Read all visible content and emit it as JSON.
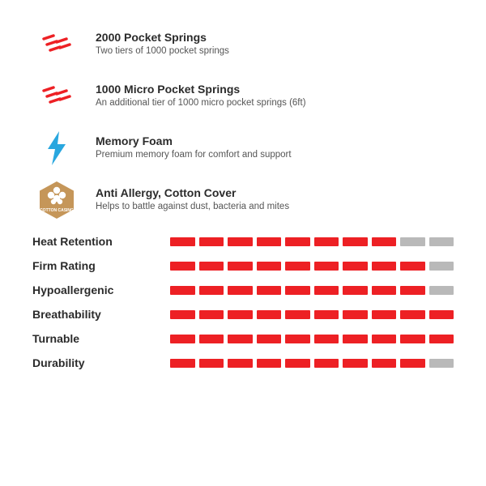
{
  "colors": {
    "filled": "#ed2024",
    "empty": "#b9b9b9",
    "text": "#2b2b2b",
    "bolt": "#29a7df",
    "hex": "#c59659",
    "spring": "#ed2024"
  },
  "features": [
    {
      "icon": "spring",
      "title": "2000 Pocket Springs",
      "sub": "Two tiers of 1000 pocket springs"
    },
    {
      "icon": "spring",
      "title": "1000 Micro Pocket Springs",
      "sub": "An additional tier of 1000 micro pocket springs (6ft)"
    },
    {
      "icon": "bolt",
      "title": "Memory Foam",
      "sub": "Premium memory foam for comfort and support"
    },
    {
      "icon": "hex",
      "title": "Anti Allergy, Cotton Cover",
      "sub": "Helps to battle against dust, bacteria and mites",
      "badge": "COTTON CASING"
    }
  ],
  "ratings_max": 10,
  "ratings": [
    {
      "label": "Heat Retention",
      "value": 8
    },
    {
      "label": "Firm Rating",
      "value": 9
    },
    {
      "label": "Hypoallergenic",
      "value": 9
    },
    {
      "label": "Breathability",
      "value": 10
    },
    {
      "label": "Turnable",
      "value": 10
    },
    {
      "label": "Durability",
      "value": 9
    }
  ]
}
